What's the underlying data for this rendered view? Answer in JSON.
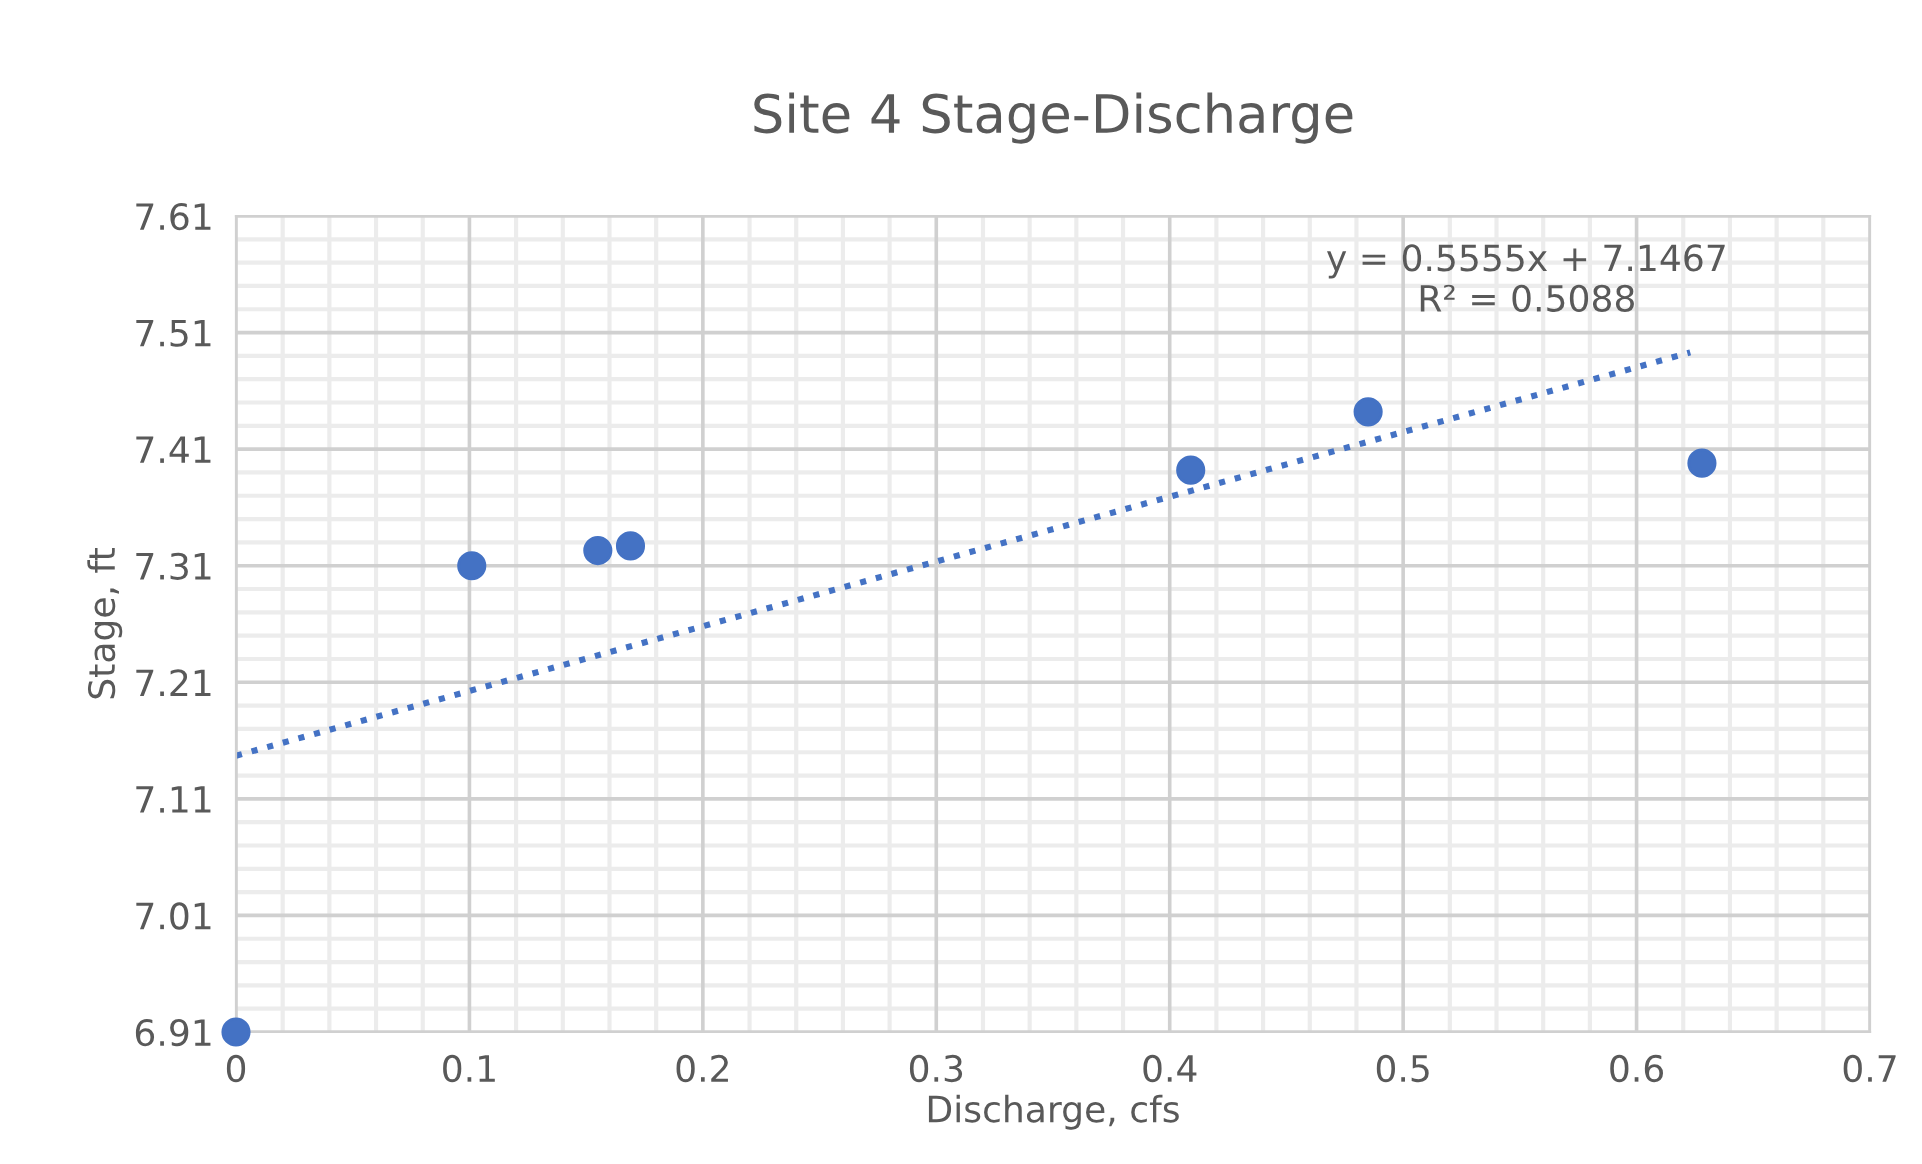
{
  "chart_data": {
    "type": "scatter",
    "title": "Site 4 Stage-Discharge",
    "xlabel": "Discharge, cfs",
    "ylabel": "Stage, ft",
    "series": [
      {
        "color": "#4472c4",
        "x": [
          0,
          0.101,
          0.155,
          0.169,
          0.409,
          0.485,
          0.628
        ],
        "values": [
          6.91,
          7.31,
          7.323,
          7.327,
          7.392,
          7.442,
          7.398
        ],
        "marker": "circle"
      },
      {
        "type": "line",
        "color": "#4472c4",
        "x": [
          0,
          0.623
        ],
        "values": [
          7.147,
          7.493
        ],
        "line_style": "dotted",
        "marker": "none"
      }
    ],
    "annotations": [
      "y = 0.5555x + 7.1467\nR² = 0.5088"
    ],
    "xlim": [
      0,
      0.7
    ],
    "xticks": [
      0,
      0.1,
      0.2,
      0.3,
      0.4,
      0.5,
      0.6,
      0.7
    ],
    "ylim": [
      6.91,
      7.61
    ],
    "yticks": [
      6.91,
      7.01,
      7.11,
      7.21,
      7.31,
      7.41,
      7.51,
      7.61
    ],
    "grid": true,
    "legend": false
  }
}
